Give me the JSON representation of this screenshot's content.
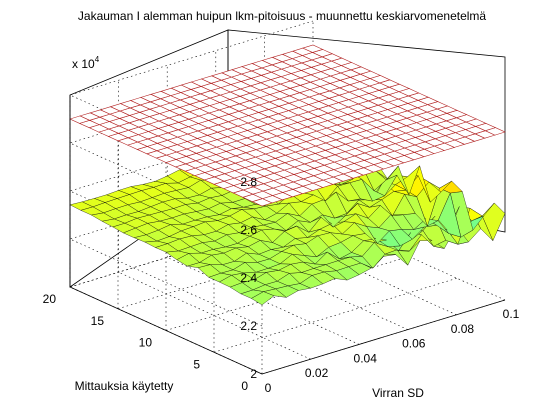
{
  "chart_data": {
    "type": "surface3d",
    "title": "Jakauman I alemman huipun lkm-pitoisuus - muunnettu keskiarvomenetelmä",
    "xlabel": "Virran SD",
    "ylabel": "Mittauksia käytetty",
    "zlabel": "",
    "z_exponent_label": "x 10",
    "z_exponent_power": "4",
    "xlim": [
      0,
      0.1
    ],
    "ylim": [
      0,
      20
    ],
    "zlim": [
      20000,
      28000
    ],
    "x_ticks": [
      "0",
      "0.02",
      "0.04",
      "0.06",
      "0.08",
      "0.1"
    ],
    "y_ticks": [
      "0",
      "5",
      "10",
      "15",
      "20"
    ],
    "z_ticks": [
      "2",
      "2.2",
      "2.4",
      "2.6",
      "2.8"
    ],
    "grid": true,
    "colormap": "jet",
    "surface_grid": {
      "nx": 21,
      "ny": 19,
      "base_level": 23000,
      "noise_amplitude": 400
    },
    "reference_plane": {
      "z": 27000,
      "edge_color": "#b22222",
      "face_color": "#ffffff"
    }
  }
}
